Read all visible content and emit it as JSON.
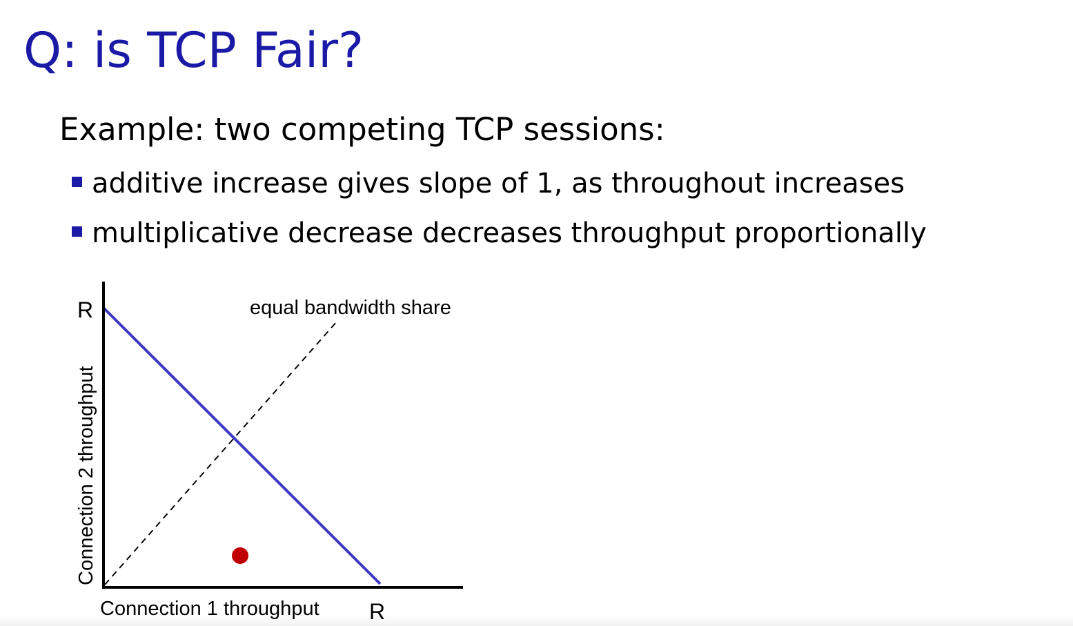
{
  "slide": {
    "title": "Q: is TCP Fair?",
    "subtitle": "Example: two competing TCP sessions:",
    "bullets": [
      "additive increase gives slope of 1, as throughout increases",
      "multiplicative decrease decreases throughput proportionally"
    ]
  },
  "diagram": {
    "y_axis_label": "Connection 2 throughput",
    "x_axis_label": "Connection 1 throughput",
    "y_max_label": "R",
    "x_max_label": "R",
    "equal_share_label": "equal bandwidth share",
    "colors": {
      "title": "#1a1aa6",
      "bullet": "#1a1aa6",
      "capacity_line": "#3b37c4",
      "operating_point": "#c00000",
      "axes": "#000000"
    }
  }
}
